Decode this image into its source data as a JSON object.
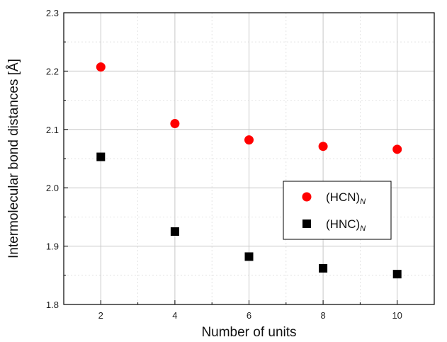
{
  "chart_data": {
    "type": "scatter",
    "xlabel": "Number of units",
    "ylabel": "Intermolecular bond distances [Å]",
    "xlim": [
      1,
      11
    ],
    "ylim": [
      1.8,
      2.3
    ],
    "xticks": [
      "2",
      "4",
      "6",
      "8",
      "10"
    ],
    "yticks": [
      "1.8",
      "1.9",
      "2.0",
      "2.1",
      "2.2",
      "2.3"
    ],
    "grid": true,
    "legend_position": "center-right",
    "series": [
      {
        "name": "(HCN)",
        "name_subscript": "N",
        "marker": "circle",
        "color": "#ff0000",
        "points": [
          {
            "x": 2,
            "y": 2.207
          },
          {
            "x": 4,
            "y": 2.11
          },
          {
            "x": 6,
            "y": 2.082
          },
          {
            "x": 8,
            "y": 2.071
          },
          {
            "x": 10,
            "y": 2.066
          }
        ]
      },
      {
        "name": "(HNC)",
        "name_subscript": "N",
        "marker": "square",
        "color": "#000000",
        "points": [
          {
            "x": 2,
            "y": 2.053
          },
          {
            "x": 4,
            "y": 1.925
          },
          {
            "x": 6,
            "y": 1.882
          },
          {
            "x": 8,
            "y": 1.862
          },
          {
            "x": 10,
            "y": 1.852
          }
        ]
      }
    ]
  }
}
